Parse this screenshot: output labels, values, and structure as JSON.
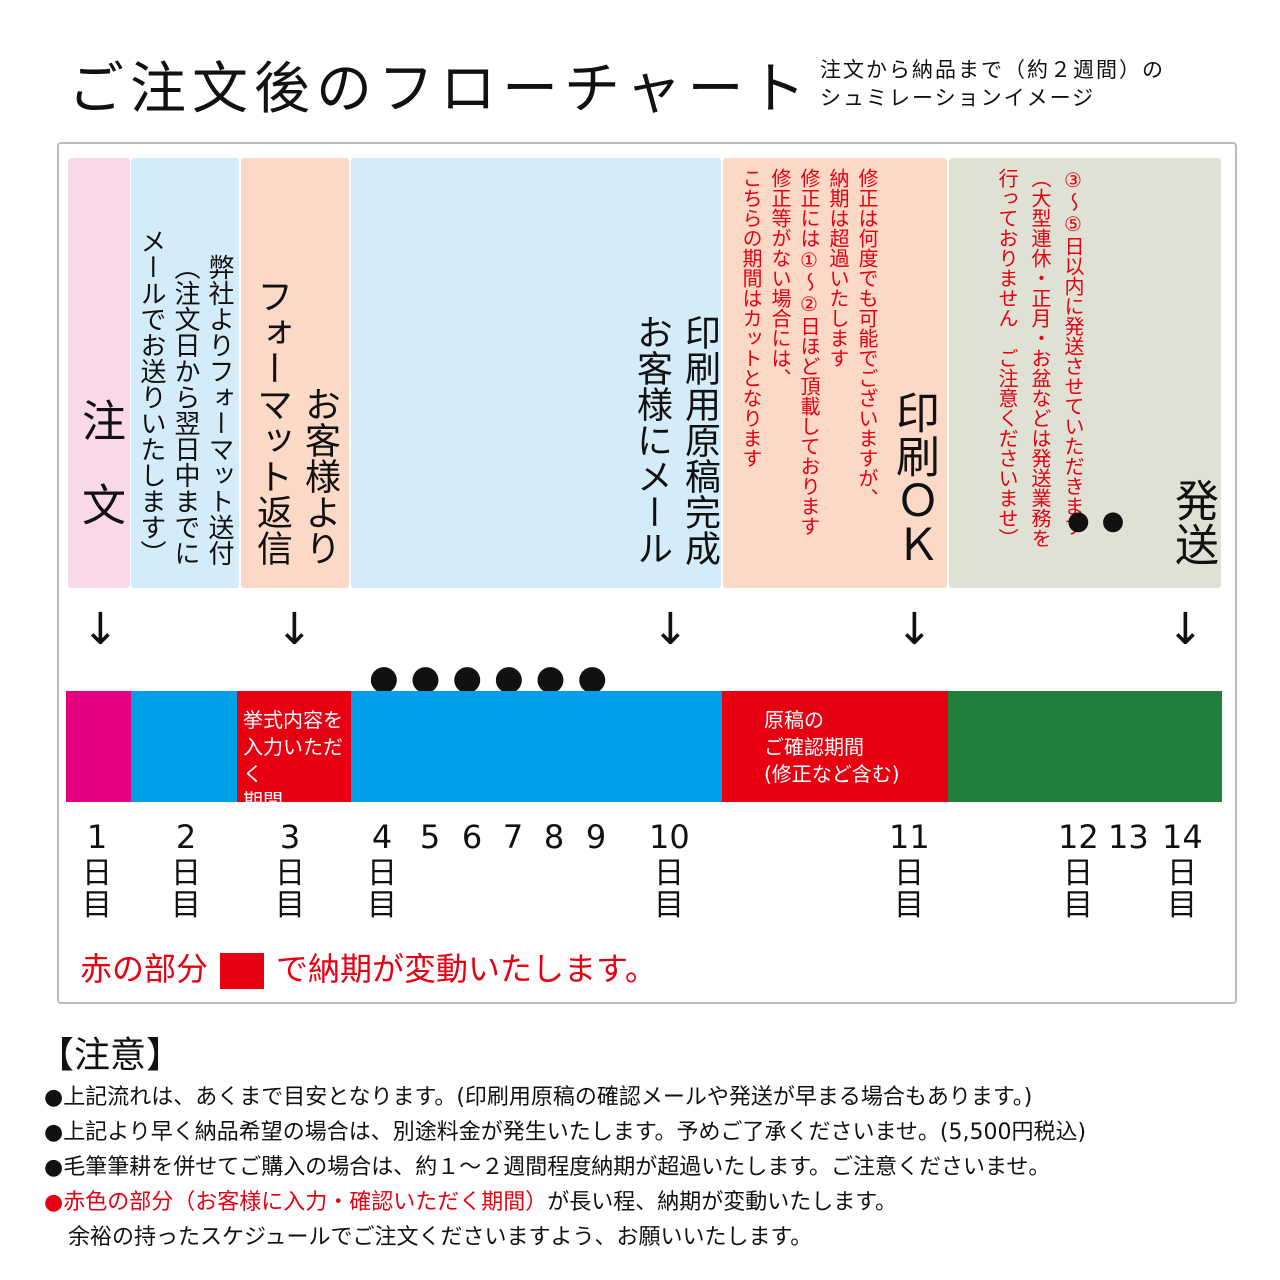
{
  "title": "ご注文後のフローチャート",
  "subtitle": [
    "注文から納品まで（約２週間）の",
    "シュミレーションイメージ"
  ],
  "columns": [
    {
      "lines": [
        "注",
        "文"
      ],
      "bg": "#f9d9e8"
    },
    {
      "lines": [
        "弊社よりフォーマット送付",
        "（注文日から翌日中までに",
        "メールでお送りいたします）"
      ],
      "bg": "#d4ecf9"
    },
    {
      "lines": [
        "お客様より",
        "フォーマット返信"
      ],
      "bg": "#fbd9c6"
    },
    {
      "lines": [
        "印刷用原稿完成",
        "お客様にメール"
      ],
      "dots": "●●●●●●",
      "bg": "#d4ecf9"
    },
    {
      "title": "印刷ＯＫ",
      "lines": [
        "修正は何度でも可能でございますが、",
        "納期は超過いたします",
        "修正には①～②日ほど頂載しております",
        "修正等がない場合には、",
        "こちらの期間はカットとなります"
      ],
      "bg": "#fbd9c6"
    },
    {
      "title": "発送",
      "lines": [
        "③～⑤日以内に発送させていただきます",
        "（大型連休・正月・お盆などは発送業務を",
        "行っておりません　ご注意くださいませ）"
      ],
      "dots": "●●",
      "bg": "#dee1d3"
    }
  ],
  "arrow": "↓",
  "bar": [
    {
      "color": "#e4007f",
      "label": ""
    },
    {
      "color": "#00a0e9",
      "label": ""
    },
    {
      "color": "#e60012",
      "label": "挙式内容を\n入力いただく\n期間"
    },
    {
      "color": "#00a0e9",
      "label": ""
    },
    {
      "color": "#e60012",
      "label": "原稿の\nご確認期間\n(修正など含む)"
    },
    {
      "color": "#217f3c",
      "label": ""
    }
  ],
  "days": [
    "1",
    "2",
    "3",
    "4",
    "5",
    "6",
    "7",
    "8",
    "9",
    "10",
    "11",
    "12",
    "13",
    "14"
  ],
  "day_suffix": [
    "日",
    "目"
  ],
  "note": {
    "before": "赤の部分",
    "after": "で納期が変動いたします。"
  },
  "caution": {
    "heading": "【注意】",
    "items": [
      "●上記流れは、あくまで目安となります。(印刷用原稿の確認メールや発送が早まる場合もあります。)",
      "●上記より早く納品希望の場合は、別途料金が発生いたします。予めご了承くださいませ。(5,500円税込)",
      "●毛筆筆耕を併せてご購入の場合は、約１～２週間程度納期が超過いたします。ご注意くださいませ。"
    ],
    "last": {
      "bullet": "●",
      "red": "赤色の部分（お客様に入力・確認いただく期間）",
      "rest": "が長い程、納期が変動いたします。",
      "line2": "余裕の持ったスケジュールでご注文くださいますよう、お願いいたします。"
    }
  }
}
